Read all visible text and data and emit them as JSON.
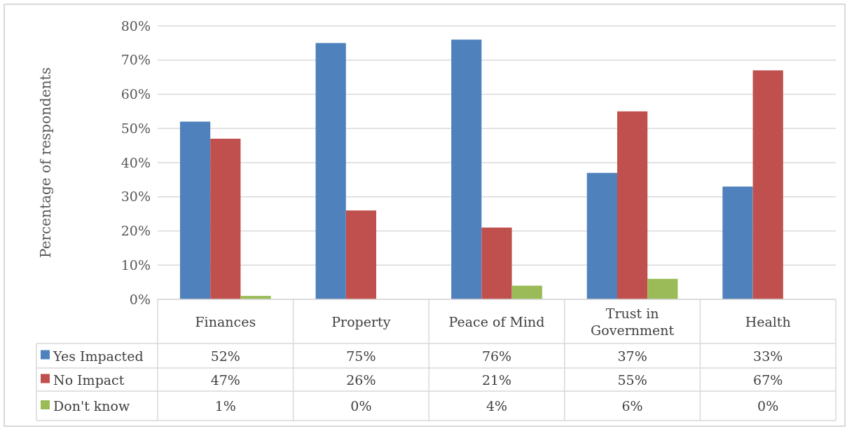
{
  "chart_data": {
    "type": "bar",
    "ylabel": "Percentage of respondents",
    "categories": [
      "Finances",
      "Property",
      "Peace of Mind",
      "Trust in Government",
      "Health"
    ],
    "series": [
      {
        "name": "Yes Impacted",
        "color": "#4f81bd",
        "values": [
          52,
          75,
          76,
          37,
          33
        ],
        "value_labels": [
          "52%",
          "75%",
          "76%",
          "37%",
          "33%"
        ]
      },
      {
        "name": "No Impact",
        "color": "#c0504d",
        "values": [
          47,
          26,
          21,
          55,
          67
        ],
        "value_labels": [
          "47%",
          "26%",
          "21%",
          "55%",
          "67%"
        ]
      },
      {
        "name": "Don't know",
        "color": "#9bbb59",
        "values": [
          1,
          0,
          4,
          6,
          0
        ],
        "value_labels": [
          "1%",
          "0%",
          "4%",
          "6%",
          "0%"
        ]
      }
    ],
    "ylim": [
      0,
      80
    ],
    "yticks": [
      {
        "value": 0,
        "label": "0%"
      },
      {
        "value": 10,
        "label": "10%"
      },
      {
        "value": 20,
        "label": "20%"
      },
      {
        "value": 30,
        "label": "30%"
      },
      {
        "value": 40,
        "label": "40%"
      },
      {
        "value": 50,
        "label": "50%"
      },
      {
        "value": 60,
        "label": "60%"
      },
      {
        "value": 70,
        "label": "70%"
      },
      {
        "value": 80,
        "label": "80%"
      }
    ],
    "grid": "y",
    "legend": "bottom left"
  }
}
